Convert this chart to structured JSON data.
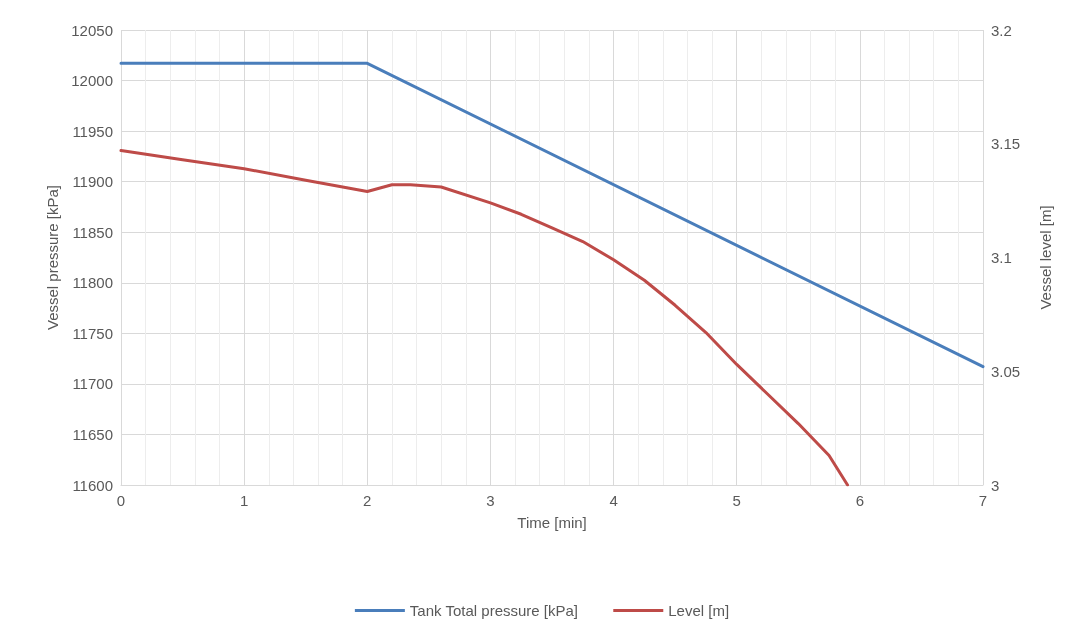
{
  "chart_data": {
    "type": "line",
    "xlabel": "Time [min]",
    "ylabel": "Vessel pressure [kPa]",
    "y2label": "Vessel level [m]",
    "xlim": [
      0,
      7
    ],
    "xticks": [
      0,
      1,
      2,
      3,
      4,
      5,
      6,
      7
    ],
    "ylim": [
      11600,
      12050
    ],
    "yticks": [
      11600,
      11650,
      11700,
      11750,
      11800,
      11850,
      11900,
      11950,
      12000,
      12050
    ],
    "y2lim": [
      3,
      3.2
    ],
    "y2ticks": [
      3,
      3.05,
      3.1,
      3.15,
      3.2
    ],
    "grid": true,
    "legend": "bottom",
    "marker": "none",
    "line_style": "solid",
    "series": [
      {
        "name": "Tank Total pressure [kPa]",
        "color": "#4a7ebb",
        "x": [
          0,
          2,
          7
        ],
        "values": [
          12017,
          12017,
          11717
        ]
      },
      {
        "name": "Level [m]",
        "color": "#be4b48",
        "axis": "y2",
        "x": [
          0,
          0.5,
          1,
          1.5,
          2,
          2.2,
          2.35,
          2.6,
          3,
          3.25,
          3.5,
          3.75,
          4,
          4.25,
          4.5,
          4.75,
          5,
          5.25,
          5.5,
          5.75,
          5.9
        ],
        "values": [
          3.147,
          3.143,
          3.139,
          3.134,
          3.129,
          3.132,
          3.132,
          3.131,
          3.124,
          3.119,
          3.113,
          3.107,
          3.099,
          3.09,
          3.079,
          3.067,
          3.053,
          3.04,
          3.027,
          3.013,
          3.0
        ]
      }
    ]
  }
}
